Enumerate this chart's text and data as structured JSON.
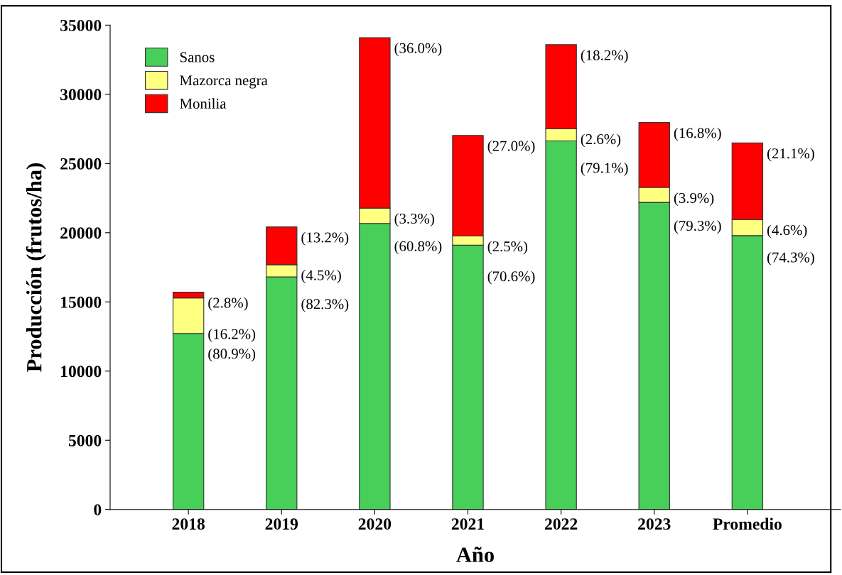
{
  "chart_data": {
    "type": "bar",
    "stacked": true,
    "xlabel": "Año",
    "ylabel": "Producción (frutos/ha)",
    "categories": [
      "2018",
      "2019",
      "2020",
      "2021",
      "2022",
      "2023",
      "Promedio"
    ],
    "series": [
      {
        "name": "Sanos",
        "color": "#47cf5a",
        "values": [
          12720,
          16810,
          20670,
          19100,
          26630,
          22190,
          19790
        ]
      },
      {
        "name": "Mazorca negra",
        "color": "#ffff80",
        "values": [
          2570,
          880,
          1110,
          670,
          890,
          1080,
          1160
        ]
      },
      {
        "name": "Monilia",
        "color": "#ff0000",
        "values": [
          410,
          2730,
          12320,
          7260,
          6070,
          4700,
          5540
        ]
      }
    ],
    "annotations": [
      {
        "text": "(80.9%)",
        "x": "2018",
        "y": 12720
      },
      {
        "text": "(16.2%)",
        "x": "2018",
        "y": 15290
      },
      {
        "text": "(2.8%)",
        "x": "2018",
        "y": 15700
      },
      {
        "text": "(82.3%)",
        "x": "2019",
        "y": 16810
      },
      {
        "text": "(4.5%)",
        "x": "2019",
        "y": 17690
      },
      {
        "text": "(13.2%)",
        "x": "2019",
        "y": 20420
      },
      {
        "text": "(60.8%)",
        "x": "2020",
        "y": 20670
      },
      {
        "text": "(3.3%)",
        "x": "2020",
        "y": 21780
      },
      {
        "text": "(36.0%)",
        "x": "2020",
        "y": 34100
      },
      {
        "text": "(70.6%)",
        "x": "2021",
        "y": 19100
      },
      {
        "text": "(2.5%)",
        "x": "2021",
        "y": 19770
      },
      {
        "text": "(27.0%)",
        "x": "2021",
        "y": 27030
      },
      {
        "text": "(79.1%)",
        "x": "2022",
        "y": 26630
      },
      {
        "text": "(2.6%)",
        "x": "2022",
        "y": 27520
      },
      {
        "text": "(18.2%)",
        "x": "2022",
        "y": 33590
      },
      {
        "text": "(79.3%)",
        "x": "2023",
        "y": 22190
      },
      {
        "text": "(3.9%)",
        "x": "2023",
        "y": 23270
      },
      {
        "text": "(16.8%)",
        "x": "2023",
        "y": 27970
      },
      {
        "text": "(74.3%)",
        "x": "Promedio",
        "y": 19790
      },
      {
        "text": "(4.6%)",
        "x": "Promedio",
        "y": 20950
      },
      {
        "text": "(21.1%)",
        "x": "Promedio",
        "y": 26490
      }
    ],
    "ylim": [
      0,
      35000
    ],
    "yticks": [
      0,
      5000,
      10000,
      15000,
      20000,
      25000,
      30000,
      35000
    ],
    "grid": false,
    "legend": "top left"
  }
}
